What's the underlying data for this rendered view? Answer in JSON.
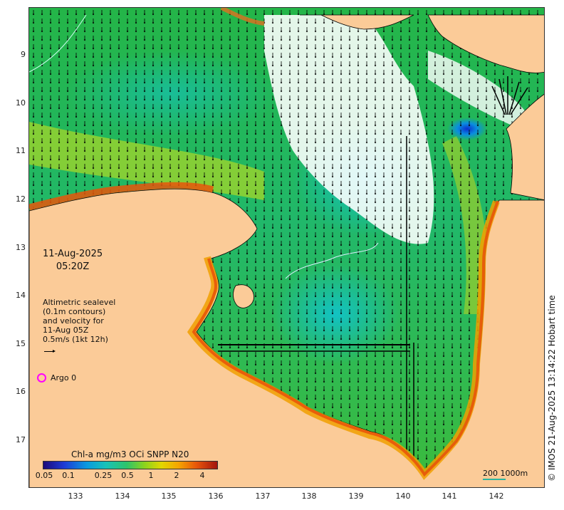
{
  "map": {
    "date": "11-Aug-2025",
    "time": "05:20Z",
    "legend_lines": [
      "Altimetric sealevel",
      "(0.1m contours)",
      "and velocity for",
      "11-Aug 05Z",
      "0.5m/s (1kt 12h)"
    ],
    "argo_label": "Argo 0",
    "colorbar_title": "Chl-a mg/m3 OCi SNPP N20",
    "colorbar_ticks": [
      "0.05",
      "0.1",
      "0.25",
      "0.5",
      "1",
      "2",
      "4"
    ],
    "credit": "© IMOS 21-Aug-2025 13:14:22 Hobart time",
    "scale_label": "200  1000m",
    "lat_ticks": [
      "9",
      "10",
      "11",
      "12",
      "13",
      "14",
      "15",
      "16",
      "17"
    ],
    "lon_ticks": [
      "133",
      "134",
      "135",
      "136",
      "137",
      "138",
      "139",
      "140",
      "141",
      "142"
    ],
    "colors": {
      "land": "#fbcb98",
      "nodata": "#ffffff",
      "ocean": "#3cb55a",
      "coast_high": "#e8560a",
      "argo": "#ff00ff"
    }
  }
}
